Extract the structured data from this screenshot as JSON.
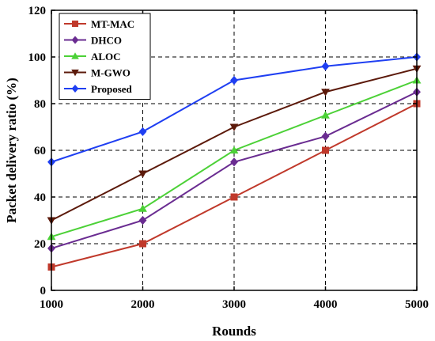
{
  "chart_data": {
    "type": "line",
    "xlabel": "Rounds",
    "ylabel": "Packet delivery ratio (%)",
    "x": [
      1000,
      2000,
      3000,
      4000,
      5000
    ],
    "xlim": [
      1000,
      5000
    ],
    "ylim": [
      0,
      120
    ],
    "xticks": [
      "1000",
      "2000",
      "3000",
      "4000",
      "5000"
    ],
    "yticks": [
      "0",
      "20",
      "40",
      "60",
      "80",
      "100",
      "120"
    ],
    "grid": true,
    "legend_position": "top-left",
    "series": [
      {
        "name": "MT-MAC",
        "color": "#c0392b",
        "marker": "square",
        "values": [
          10,
          20,
          40,
          60,
          80
        ]
      },
      {
        "name": "DHCO",
        "color": "#6a2c91",
        "marker": "diamond",
        "values": [
          18,
          30,
          55,
          66,
          85
        ]
      },
      {
        "name": "ALOC",
        "color": "#4cd137",
        "marker": "triangle-up",
        "values": [
          23,
          35,
          60,
          75,
          90
        ]
      },
      {
        "name": "M-GWO",
        "color": "#5c1a0b",
        "marker": "triangle-down",
        "values": [
          30,
          50,
          70,
          85,
          95
        ]
      },
      {
        "name": "Proposed",
        "color": "#1f3ff2",
        "marker": "diamond",
        "values": [
          55,
          68,
          90,
          96,
          100
        ]
      }
    ]
  }
}
